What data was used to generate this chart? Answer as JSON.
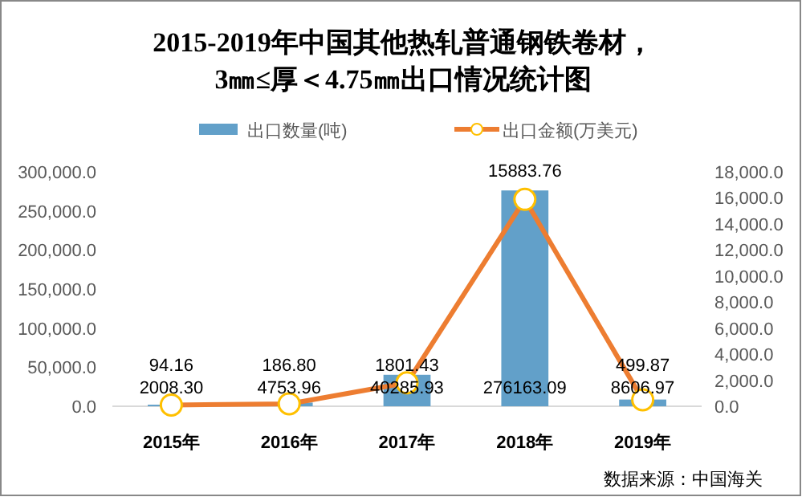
{
  "chart_data": {
    "type": "bar",
    "title": "2015-2019年中国其他热轧普通钢铁卷材，\n3㎜≤厚＜4.75㎜出口情况统计图",
    "categories": [
      "2015年",
      "2016年",
      "2017年",
      "2018年",
      "2019年"
    ],
    "series": [
      {
        "name": "出口数量(吨)",
        "color": "#62a0c9",
        "values": [
          2008.3,
          4753.96,
          40285.93,
          276163.09,
          8606.97
        ],
        "value_labels": [
          "2008.30",
          "4753.96",
          "40285.93",
          "276163.09",
          "8606.97"
        ]
      },
      {
        "name": "出口金额(万美元)",
        "type": "line",
        "axis": "y2",
        "color": "#ed7d31",
        "marker": "circle",
        "values": [
          94.16,
          186.8,
          1801.43,
          15883.76,
          499.87
        ],
        "value_labels": [
          "94.16",
          "186.80",
          "1801.43",
          "15883.76",
          "499.87"
        ]
      }
    ],
    "ylim": [
      0,
      300000
    ],
    "yticks": [
      {
        "value": 0,
        "label": "0.0"
      },
      {
        "value": 50000,
        "label": "50,000.0"
      },
      {
        "value": 100000,
        "label": "100,000.0"
      },
      {
        "value": 150000,
        "label": "150,000.0"
      },
      {
        "value": 200000,
        "label": "200,000.0"
      },
      {
        "value": 250000,
        "label": "250,000.0"
      },
      {
        "value": 300000,
        "label": "300,000.0"
      }
    ],
    "y2lim": [
      0,
      18000
    ],
    "y2ticks": [
      {
        "value": 0,
        "label": "0.0"
      },
      {
        "value": 2000,
        "label": "2,000.0"
      },
      {
        "value": 4000,
        "label": "4,000.0"
      },
      {
        "value": 6000,
        "label": "6,000.0"
      },
      {
        "value": 8000,
        "label": "8,000.0"
      },
      {
        "value": 10000,
        "label": "10,000.0"
      },
      {
        "value": 12000,
        "label": "12,000.0"
      },
      {
        "value": 14000,
        "label": "14,000.0"
      },
      {
        "value": 16000,
        "label": "16,000.0"
      },
      {
        "value": 18000,
        "label": "18,000.0"
      }
    ],
    "legend": "top",
    "grid": false,
    "annotations": [
      "数据来源：中国海关"
    ]
  }
}
